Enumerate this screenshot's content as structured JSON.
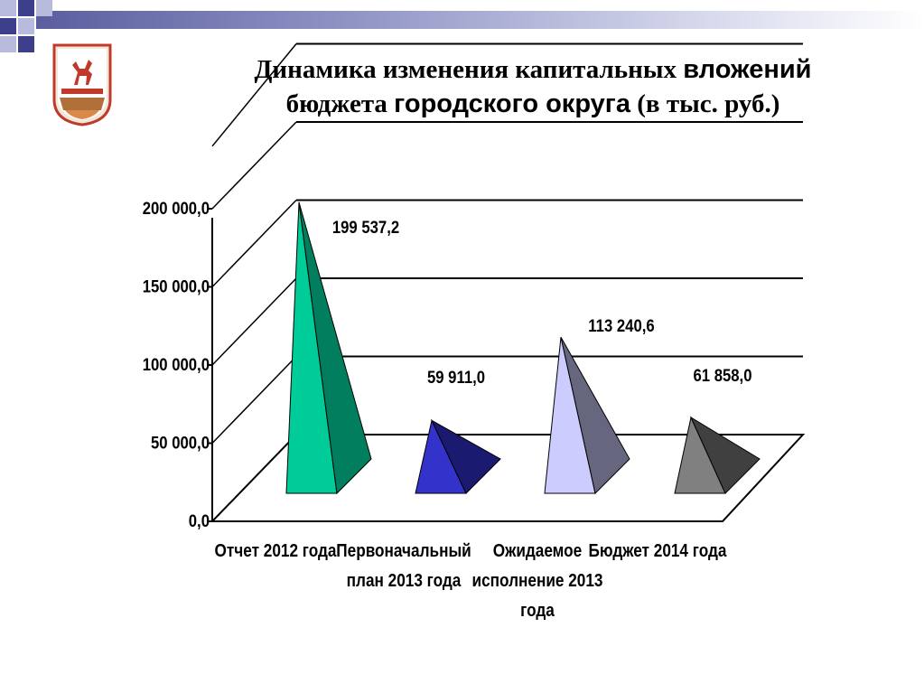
{
  "header": {
    "title_line1_serif": "Динамика изменения капитальных ",
    "title_line1_sans": "вложений",
    "title_line2_serif_a": "бюджета ",
    "title_line2_sans": "городского округа",
    "title_line2_serif_b": "  (в тыс. руб.)"
  },
  "colors": {
    "decor_dark": "#3d3f8a",
    "decor_light": "#b9bbdc"
  },
  "chart_data": {
    "type": "bar",
    "style": "3d-pyramid",
    "title": "",
    "xlabel": "",
    "ylabel": "",
    "ylim": [
      0,
      200000
    ],
    "grid": true,
    "legend": "none",
    "yticks": [
      "0,0",
      "50 000,0",
      "100 000,0",
      "150 000,0",
      "200 000,0"
    ],
    "categories": [
      [
        "Отчет 2012 года"
      ],
      [
        "Первоначальный",
        "план 2013 года"
      ],
      [
        "Ожидаемое",
        "исполнение 2013",
        "года"
      ],
      [
        "Бюджет 2014 года"
      ]
    ],
    "values": [
      199537.2,
      59911.0,
      113240.6,
      61858.0
    ],
    "data_labels": [
      "199 537,2",
      "59 911,0",
      "113 240,6",
      "61 858,0"
    ],
    "bar_colors": [
      {
        "front": "#00cc99",
        "side": "#007e5e"
      },
      {
        "front": "#3333cc",
        "side": "#1a1a70"
      },
      {
        "front": "#ccccff",
        "side": "#66667f"
      },
      {
        "front": "#808080",
        "side": "#404040"
      }
    ]
  }
}
